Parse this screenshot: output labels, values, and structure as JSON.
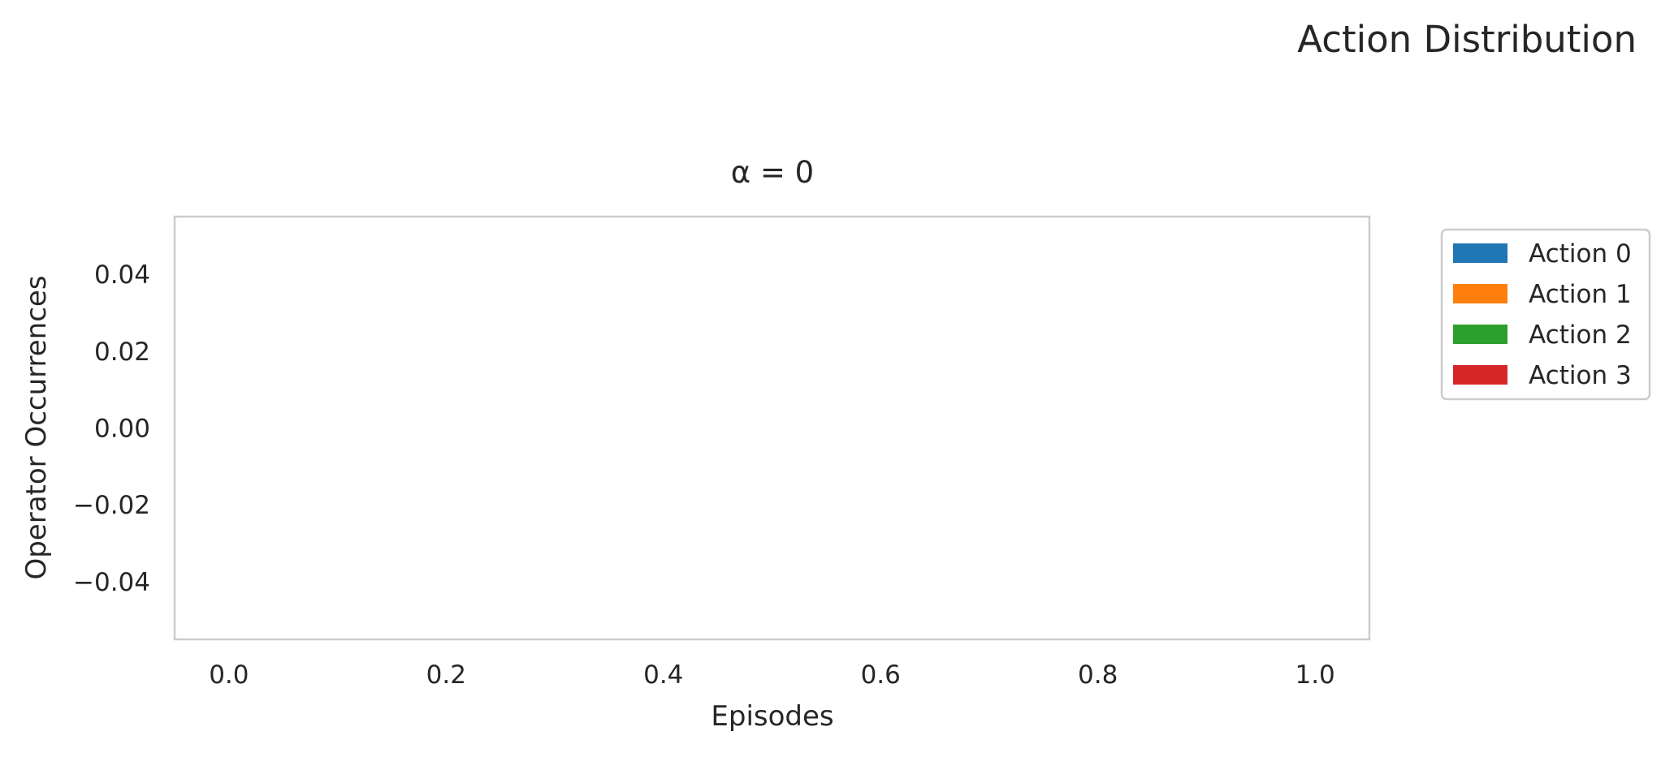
{
  "figure": {
    "suptitle": "Action Distribution"
  },
  "chart_data": {
    "type": "bar",
    "title": "α = 0",
    "xlabel": "Episodes",
    "ylabel": "Operator Occurrences",
    "xlim": [
      -0.05,
      1.05
    ],
    "ylim": [
      -0.055,
      0.055
    ],
    "xticks": [
      0.0,
      0.2,
      0.4,
      0.6,
      0.8,
      1.0
    ],
    "xtick_labels": [
      "0.0",
      "0.2",
      "0.4",
      "0.6",
      "0.8",
      "1.0"
    ],
    "yticks": [
      0.04,
      0.02,
      0.0,
      -0.02,
      -0.04
    ],
    "ytick_labels": [
      "0.04",
      "0.02",
      "0.00",
      "−0.02",
      "−0.04"
    ],
    "grid": false,
    "stacked": true,
    "legend_position": "outside-right-top",
    "series": [
      {
        "name": "Action 0",
        "color": "#1f77b4",
        "values": []
      },
      {
        "name": "Action 1",
        "color": "#ff7f0e",
        "values": []
      },
      {
        "name": "Action 2",
        "color": "#2ca02c",
        "values": []
      },
      {
        "name": "Action 3",
        "color": "#d62728",
        "values": []
      }
    ]
  }
}
